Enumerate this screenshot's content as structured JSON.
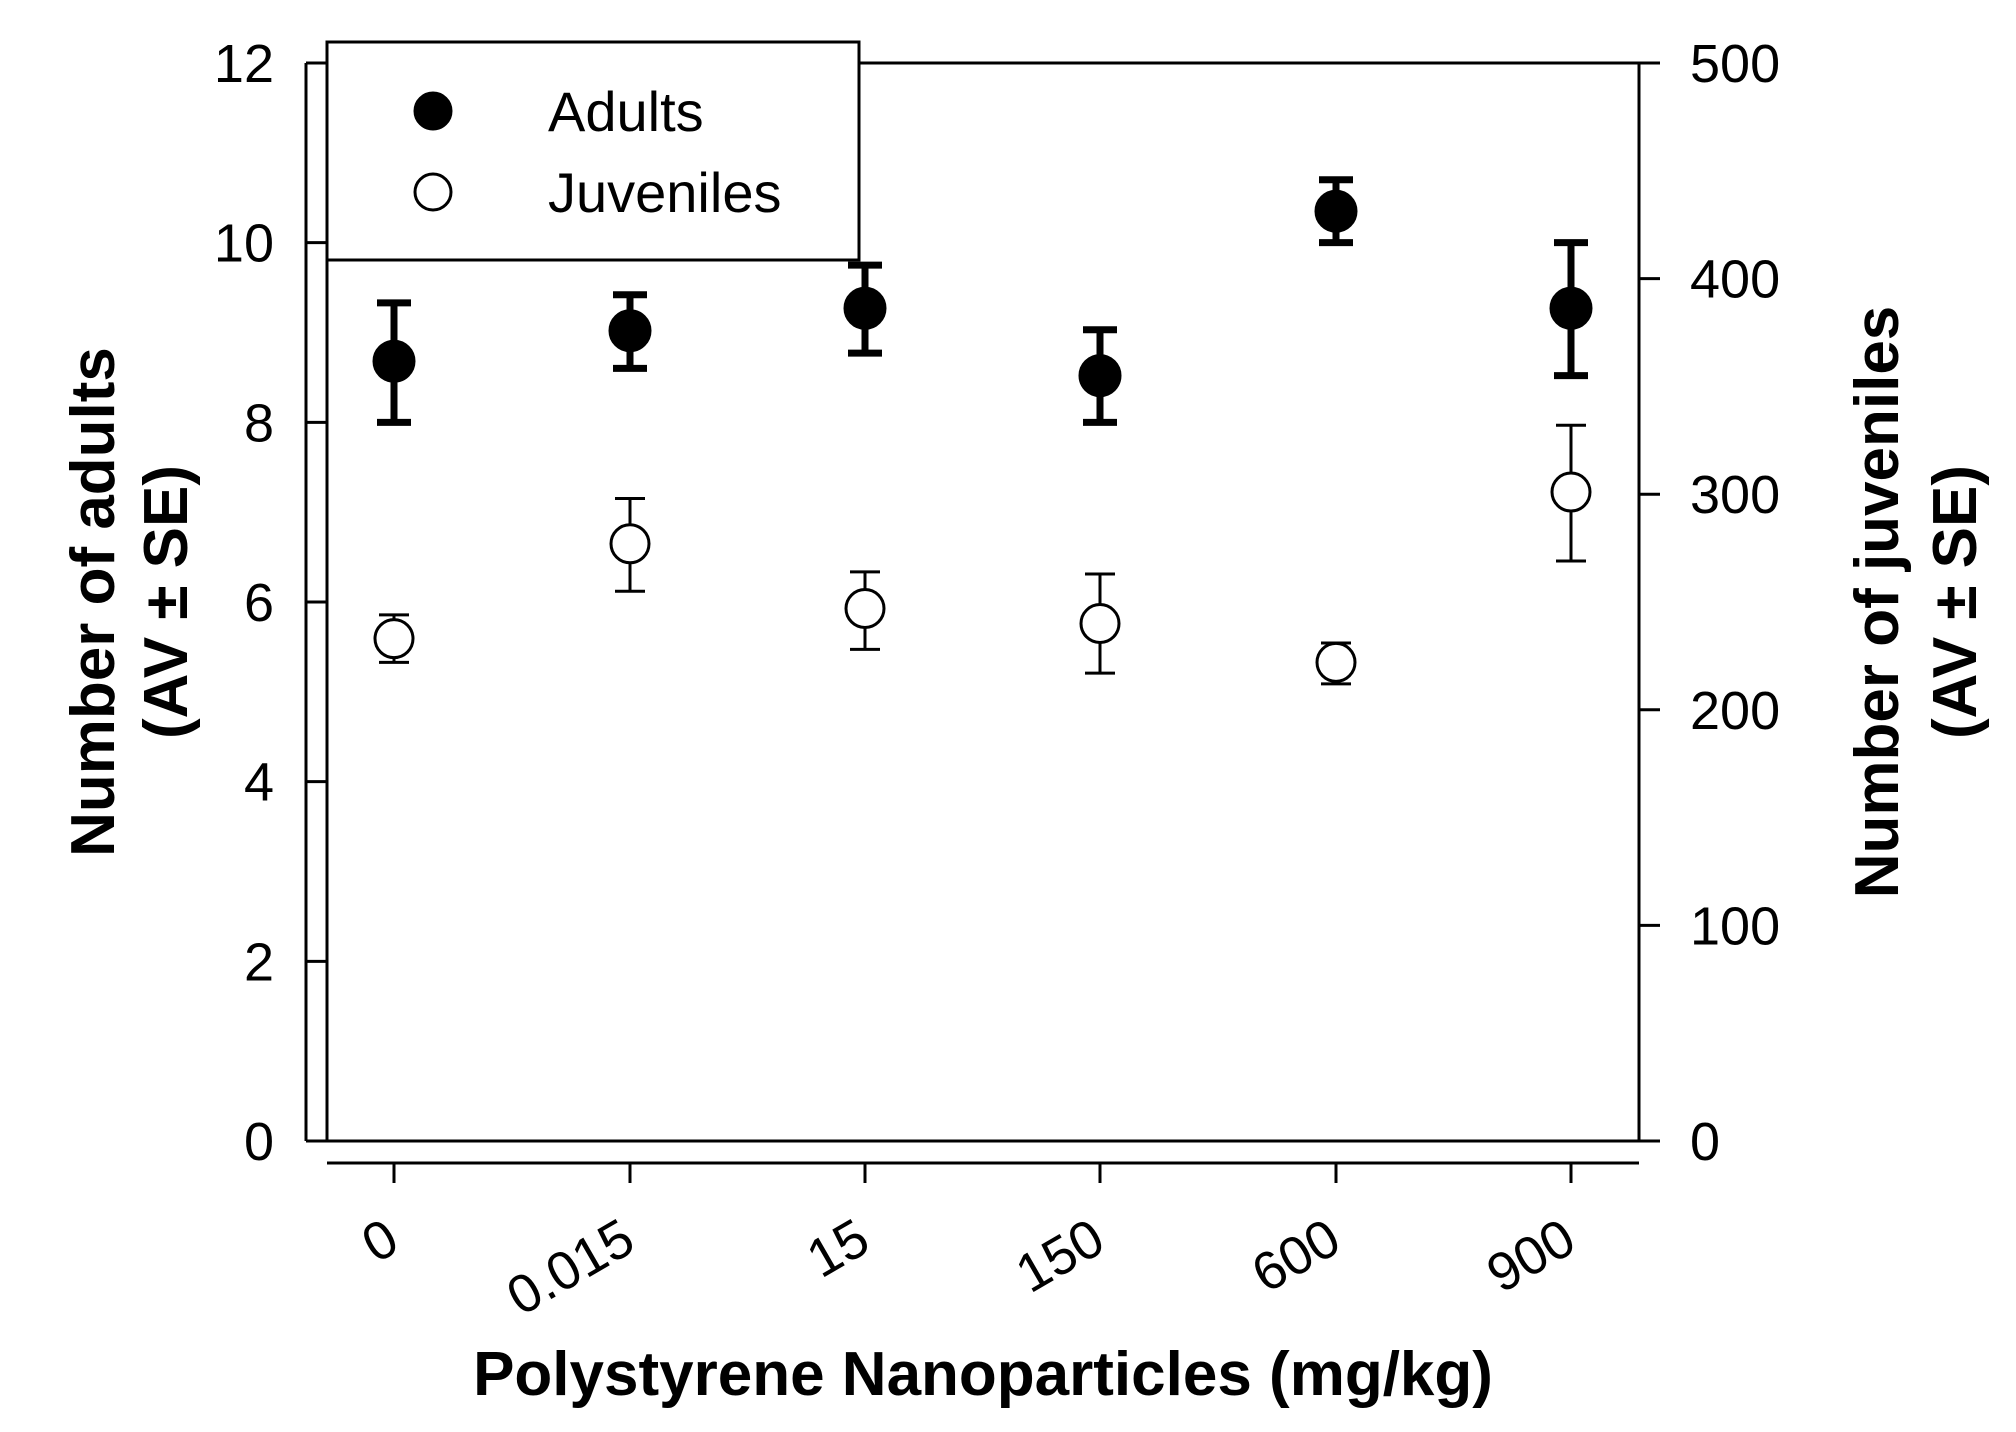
{
  "chart_data": {
    "type": "scatter",
    "x_label": "Polystyrene Nanoparticles (mg/kg)",
    "categories": [
      "0",
      "0.015",
      "15",
      "150",
      "600",
      "900"
    ],
    "y_left": {
      "label_line1": "Number of adults",
      "label_line2": "(AV ± SE)",
      "ylim": [
        0,
        12
      ],
      "ticks": [
        "0",
        "2",
        "4",
        "6",
        "8",
        "10",
        "12"
      ]
    },
    "y_right": {
      "label_line1": "Number of juveniles",
      "label_line2": "(AV ± SE)",
      "ylim": [
        0,
        500
      ],
      "ticks": [
        "0",
        "100",
        "200",
        "300",
        "400",
        "500"
      ]
    },
    "series": [
      {
        "name": "Adults",
        "axis": "left",
        "marker": "filled-circle",
        "values": [
          8.68,
          9.02,
          9.27,
          8.52,
          10.35,
          9.27
        ],
        "err_low": [
          8.0,
          8.6,
          8.77,
          8.0,
          10.0,
          8.52
        ],
        "err_high": [
          9.33,
          9.42,
          9.75,
          9.03,
          10.7,
          10.0
        ]
      },
      {
        "name": "Juveniles",
        "axis": "right",
        "marker": "open-circle",
        "values": [
          233,
          277,
          247,
          240,
          222,
          301
        ],
        "err_low": [
          222,
          255,
          228,
          217,
          212,
          269
        ],
        "err_high": [
          244,
          298,
          264,
          263,
          231,
          332
        ]
      }
    ],
    "legend": {
      "position": "top-left",
      "entries": [
        "Adults",
        "Juveniles"
      ]
    },
    "colors": {
      "filled": "#000000",
      "open_fill": "#ffffff",
      "stroke": "#000000"
    }
  }
}
